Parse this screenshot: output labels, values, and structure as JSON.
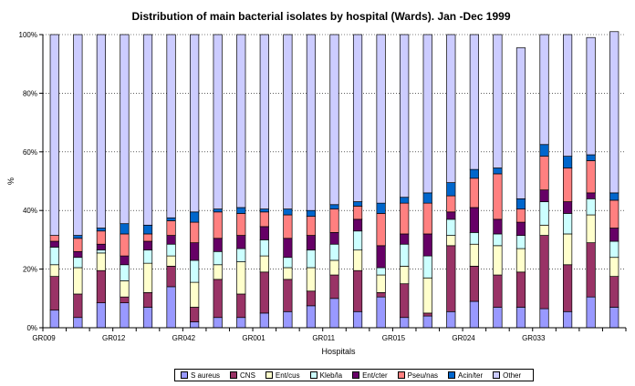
{
  "chart_data": {
    "type": "bar",
    "stacked": true,
    "percent": true,
    "title": "Distribution of main bacterial isolates by hospital (Wards). Jan -Dec 1999",
    "xlabel": "Hospitals",
    "ylabel": "%",
    "ylim": [
      0,
      100
    ],
    "y_ticks": [
      "0%",
      "20%",
      "40%",
      "60%",
      "80%",
      "100%"
    ],
    "x_tick_labels": [
      "GR009",
      "GR012",
      "GR042",
      "GR001",
      "GR011",
      "GR015",
      "GR024",
      "GR033"
    ],
    "legend_position": "bottom",
    "colors": [
      "#9999ff",
      "#993366",
      "#ffffcc",
      "#ccffff",
      "#660066",
      "#ff8080",
      "#0066cc",
      "#ccccff"
    ],
    "series": [
      {
        "name": "S aureus",
        "values": [
          6,
          3.5,
          8.5,
          8.5,
          7,
          14,
          2,
          3.5,
          3.5,
          5,
          5.5,
          7.5,
          10,
          5.5,
          10.5,
          3.5,
          4,
          5.5,
          9,
          7,
          7,
          6.5,
          5.5,
          10.5,
          7
        ]
      },
      {
        "name": "CNS",
        "values": [
          11.5,
          8,
          11,
          2,
          5,
          7,
          5,
          13,
          8,
          14,
          11,
          5,
          8,
          14,
          1.5,
          11.5,
          1,
          22.5,
          12,
          11,
          12,
          25,
          16,
          18.5,
          10.5
        ]
      },
      {
        "name": "Ent/cus",
        "values": [
          4,
          9,
          6,
          5.5,
          10,
          3.5,
          8.5,
          5,
          11,
          5.5,
          4,
          8,
          5,
          7,
          6,
          6,
          12,
          3.5,
          7.5,
          10,
          8,
          3.5,
          10.5,
          9.5,
          6.5
        ]
      },
      {
        "name": "Kleb/la",
        "values": [
          6,
          3.5,
          1,
          5.5,
          4.5,
          4,
          7.5,
          4.5,
          4.5,
          5.5,
          3.5,
          6,
          5.5,
          6.5,
          2.5,
          7.5,
          7.5,
          5.5,
          4,
          4,
          4.5,
          8,
          7,
          5.5,
          5.5
        ]
      },
      {
        "name": "Ent/cter",
        "values": [
          2,
          2,
          2,
          3,
          3,
          3,
          6,
          4.5,
          4.5,
          4.5,
          6.5,
          5,
          4,
          4,
          7.5,
          3.5,
          7.5,
          2.5,
          8.5,
          5,
          4.5,
          4,
          4,
          2,
          4.5
        ]
      },
      {
        "name": "Pseu/nas",
        "values": [
          2,
          4.5,
          4.5,
          7.5,
          2.5,
          5,
          7,
          9,
          7.5,
          5,
          8,
          6.5,
          8,
          4.5,
          11,
          10.5,
          10.5,
          5.5,
          10,
          15.5,
          4.5,
          11.5,
          11.5,
          11,
          9.5
        ]
      },
      {
        "name": "Acin/ter",
        "values": [
          0,
          1,
          1,
          3.5,
          3,
          1,
          3.5,
          1,
          2,
          1,
          2,
          2,
          1.5,
          1.5,
          3.5,
          2,
          3.5,
          4.5,
          3,
          2,
          3.5,
          4,
          4,
          2,
          2.5
        ]
      },
      {
        "name": "Other",
        "values": [
          68.5,
          68.5,
          66,
          64.5,
          65,
          62.5,
          60.5,
          59.5,
          59,
          59.5,
          59.5,
          60,
          58,
          57,
          57.5,
          55.5,
          54,
          50.5,
          46,
          45.5,
          51.5,
          37.5,
          41.5,
          40,
          55
        ]
      }
    ]
  }
}
